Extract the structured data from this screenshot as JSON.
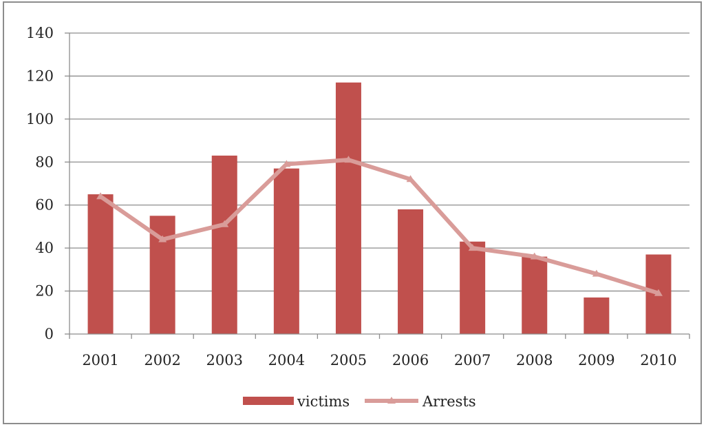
{
  "chart_data": {
    "type": "bar",
    "title": "",
    "xlabel": "",
    "ylabel": "",
    "categories": [
      "2001",
      "2002",
      "2003",
      "2004",
      "2005",
      "2006",
      "2007",
      "2008",
      "2009",
      "2010"
    ],
    "series": [
      {
        "name": "victims",
        "type": "bar",
        "color": "#c0504d",
        "values": [
          65,
          55,
          83,
          77,
          117,
          58,
          43,
          36,
          17,
          37
        ]
      },
      {
        "name": "Arrests",
        "type": "line",
        "marker": "triangle",
        "color": "#d99c99",
        "values": [
          64,
          44,
          51,
          79,
          81,
          72,
          40,
          36,
          28,
          19
        ]
      }
    ],
    "ylim": [
      0,
      140
    ],
    "yticks": [
      "0",
      "20",
      "40",
      "60",
      "80",
      "100",
      "120",
      "140"
    ],
    "grid": true,
    "legend": "bottom"
  }
}
